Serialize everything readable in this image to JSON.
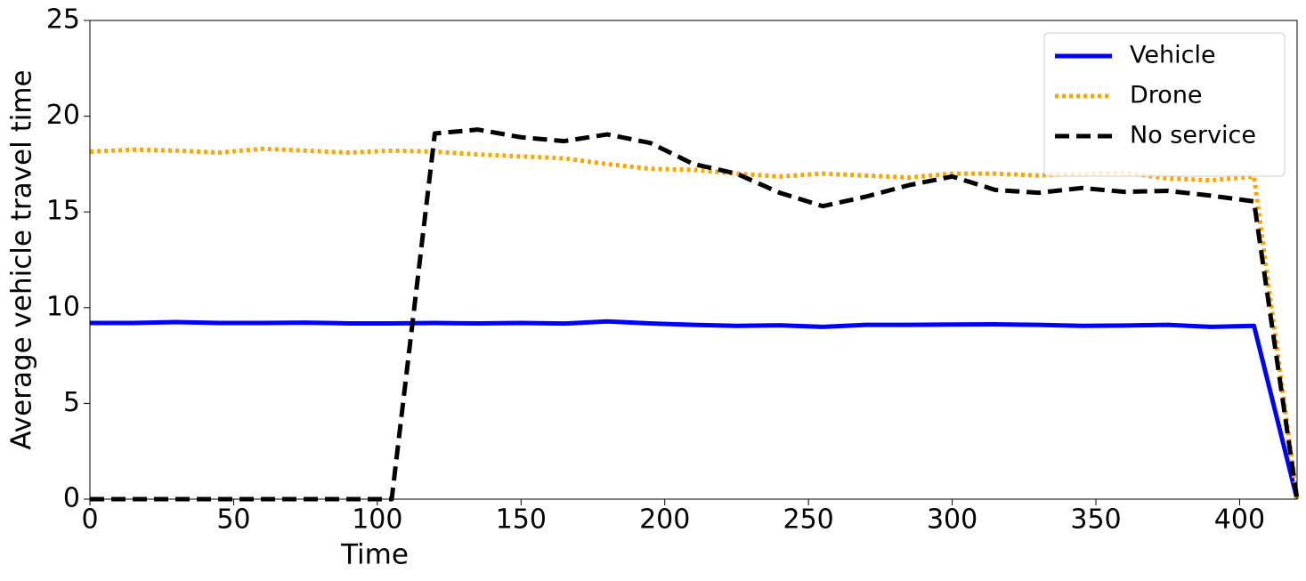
{
  "chart_data": {
    "type": "line",
    "xlabel": "Time",
    "ylabel": "Average vehicle travel time",
    "x": [
      0,
      15,
      30,
      45,
      60,
      75,
      90,
      105,
      120,
      135,
      150,
      165,
      180,
      195,
      210,
      225,
      240,
      255,
      270,
      285,
      300,
      315,
      330,
      345,
      360,
      375,
      390,
      405,
      420
    ],
    "series": [
      {
        "name": "Vehicle",
        "color": "#0000ff",
        "dash": "solid",
        "values": [
          9.2,
          9.2,
          9.25,
          9.2,
          9.2,
          9.22,
          9.18,
          9.18,
          9.2,
          9.18,
          9.2,
          9.17,
          9.28,
          9.18,
          9.1,
          9.05,
          9.08,
          9.0,
          9.1,
          9.1,
          9.12,
          9.13,
          9.1,
          9.05,
          9.07,
          9.1,
          9.0,
          9.05,
          0
        ]
      },
      {
        "name": "Drone",
        "color": "#ffa500",
        "dash": "dotted",
        "values": [
          18.15,
          18.25,
          18.2,
          18.1,
          18.3,
          18.2,
          18.1,
          18.2,
          18.15,
          18.0,
          17.9,
          17.8,
          17.5,
          17.25,
          17.2,
          17.0,
          16.85,
          17.0,
          16.9,
          16.8,
          17.0,
          17.0,
          16.9,
          17.0,
          17.05,
          16.75,
          16.65,
          16.85,
          0
        ]
      },
      {
        "name": "No service",
        "color": "#000000",
        "dash": "dashed",
        "values": [
          0,
          0,
          0,
          0,
          0,
          0,
          0,
          0,
          19.1,
          19.3,
          18.9,
          18.7,
          19.05,
          18.6,
          17.5,
          17.0,
          16.0,
          15.3,
          15.8,
          16.4,
          16.85,
          16.15,
          16.0,
          16.25,
          16.05,
          16.1,
          15.85,
          15.55,
          0
        ]
      }
    ],
    "xlim": [
      0,
      420
    ],
    "xticks": [
      0,
      50,
      100,
      150,
      200,
      250,
      300,
      350,
      400
    ],
    "ylim": [
      0,
      25
    ],
    "yticks": [
      0,
      5,
      10,
      15,
      20,
      25
    ],
    "grid": false,
    "legend": "upper right"
  }
}
